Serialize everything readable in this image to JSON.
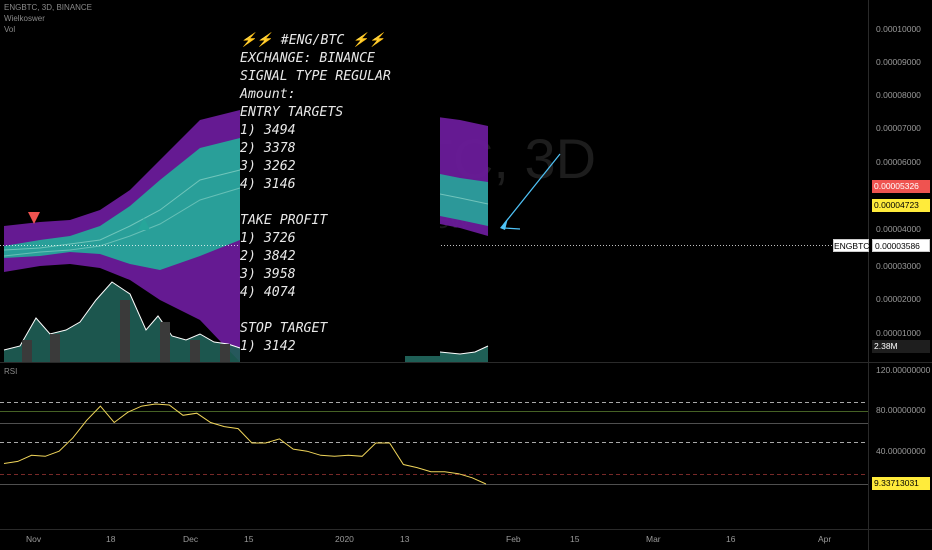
{
  "header": {
    "symbol_line": "ENGBTC, 3D, BINANCE",
    "indicator1": "Wielkoswer",
    "indicator2": "Vol"
  },
  "watermark": "ENGBTC, 3D",
  "rsi_label": "RSI",
  "signal_lines": [
    "⚡⚡ #ENG/BTC ⚡⚡",
    "EXCHANGE: BINANCE",
    "SIGNAL TYPE REGULAR",
    "Amount:",
    "ENTRY TARGETS",
    "1) 3494",
    "2) 3378",
    "3) 3262",
    "4) 3146",
    "",
    "TAKE PROFIT",
    "1) 3726",
    "2) 3842",
    "3) 3958",
    "4) 4074",
    "",
    "STOP TARGET",
    "1) 3142"
  ],
  "price_axis": [
    "0.00010000",
    "0.00009000",
    "0.00008000",
    "0.00007000",
    "0.00006000",
    "0.00004000",
    "0.00003000",
    "0.00002000",
    "0.00001000"
  ],
  "price_tags": {
    "red": "0.00005326",
    "yellow": "0.00004723",
    "symbol": "ENGBTC",
    "white": "0.00003586",
    "volume": "2.38M"
  },
  "rsi_axis": [
    "120.00000000",
    "80.00000000",
    "40.00000000"
  ],
  "rsi_tag": "9.33713031",
  "time_axis": [
    "Nov",
    "18",
    "Dec",
    "15",
    "2020",
    "13",
    "Feb",
    "15",
    "Mar",
    "16",
    "Apr"
  ],
  "colors": {
    "up": "#2196f3",
    "down": "#ffffff",
    "band_green": "#26a69a",
    "band_purple": "#6a1b9a",
    "rsi_line": "#f0d55a",
    "red_tag": "#ef5350",
    "yellow_tag": "#ffeb3b"
  },
  "chart_data": {
    "type": "line",
    "title": "ENGBTC, 3D, BINANCE",
    "price_candles_close": [
      3.31e-05,
      3.31e-05,
      3.36e-05,
      3.35e-05,
      3.3e-05,
      3.29e-05,
      3.36e-05,
      3.37e-05,
      3.54e-05,
      4.8e-05,
      4.42e-05,
      5.7e-05,
      6.4e-05,
      6.88e-05,
      6.97e-05,
      6.67e-05,
      6.98e-05,
      6.4e-05,
      6.15e-05
    ],
    "price_candles_close_2": [
      5.25e-05,
      4.78e-05,
      4.7e-05,
      4.7e-05,
      4.52e-05,
      4.35e-05,
      3.58e-05
    ],
    "rsi": {
      "values": [
        30,
        32,
        38,
        37,
        42,
        55,
        72,
        86,
        70,
        80,
        86,
        88,
        87,
        77,
        79,
        70,
        66,
        64,
        50,
        50,
        54,
        44,
        42,
        38,
        37,
        38,
        37,
        50,
        50,
        29,
        26,
        22,
        22,
        20,
        16,
        10
      ],
      "ylim": [
        0,
        120
      ],
      "levels": [
        90,
        80,
        70,
        50,
        30
      ]
    }
  }
}
